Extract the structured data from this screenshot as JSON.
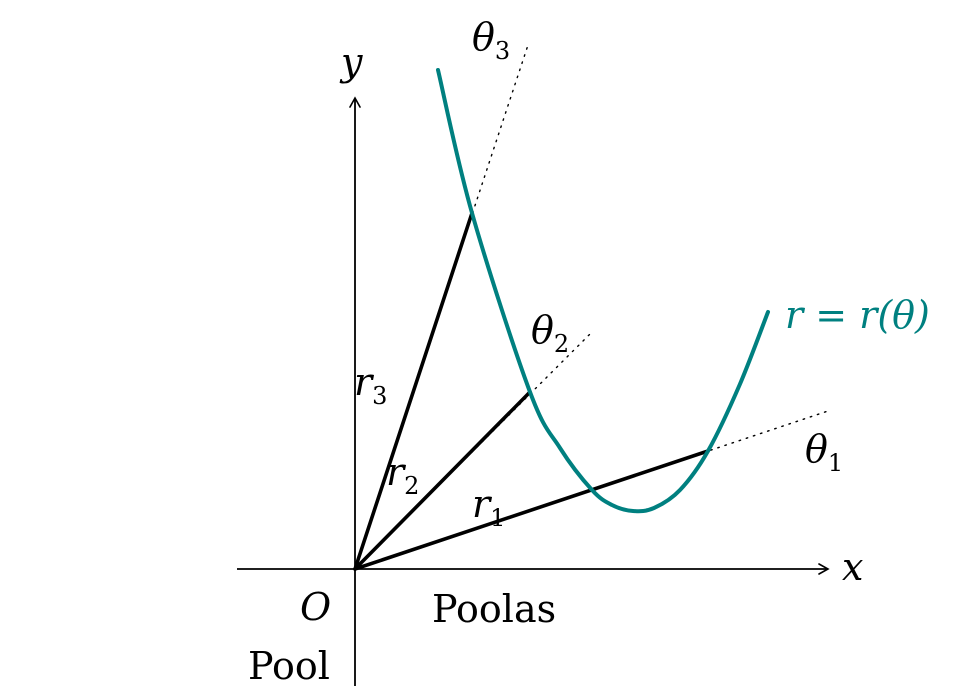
{
  "labels": {
    "axis_x": "x",
    "axis_y": "y",
    "origin": "O",
    "pole": "Pool",
    "polar_axis": "Poolas",
    "curve": "r = r(θ)",
    "theta": "θ",
    "r": "r",
    "sub1": "1",
    "sub2": "2",
    "sub3": "3"
  },
  "colors": {
    "ink": "#000000",
    "curve": "#008080"
  }
}
